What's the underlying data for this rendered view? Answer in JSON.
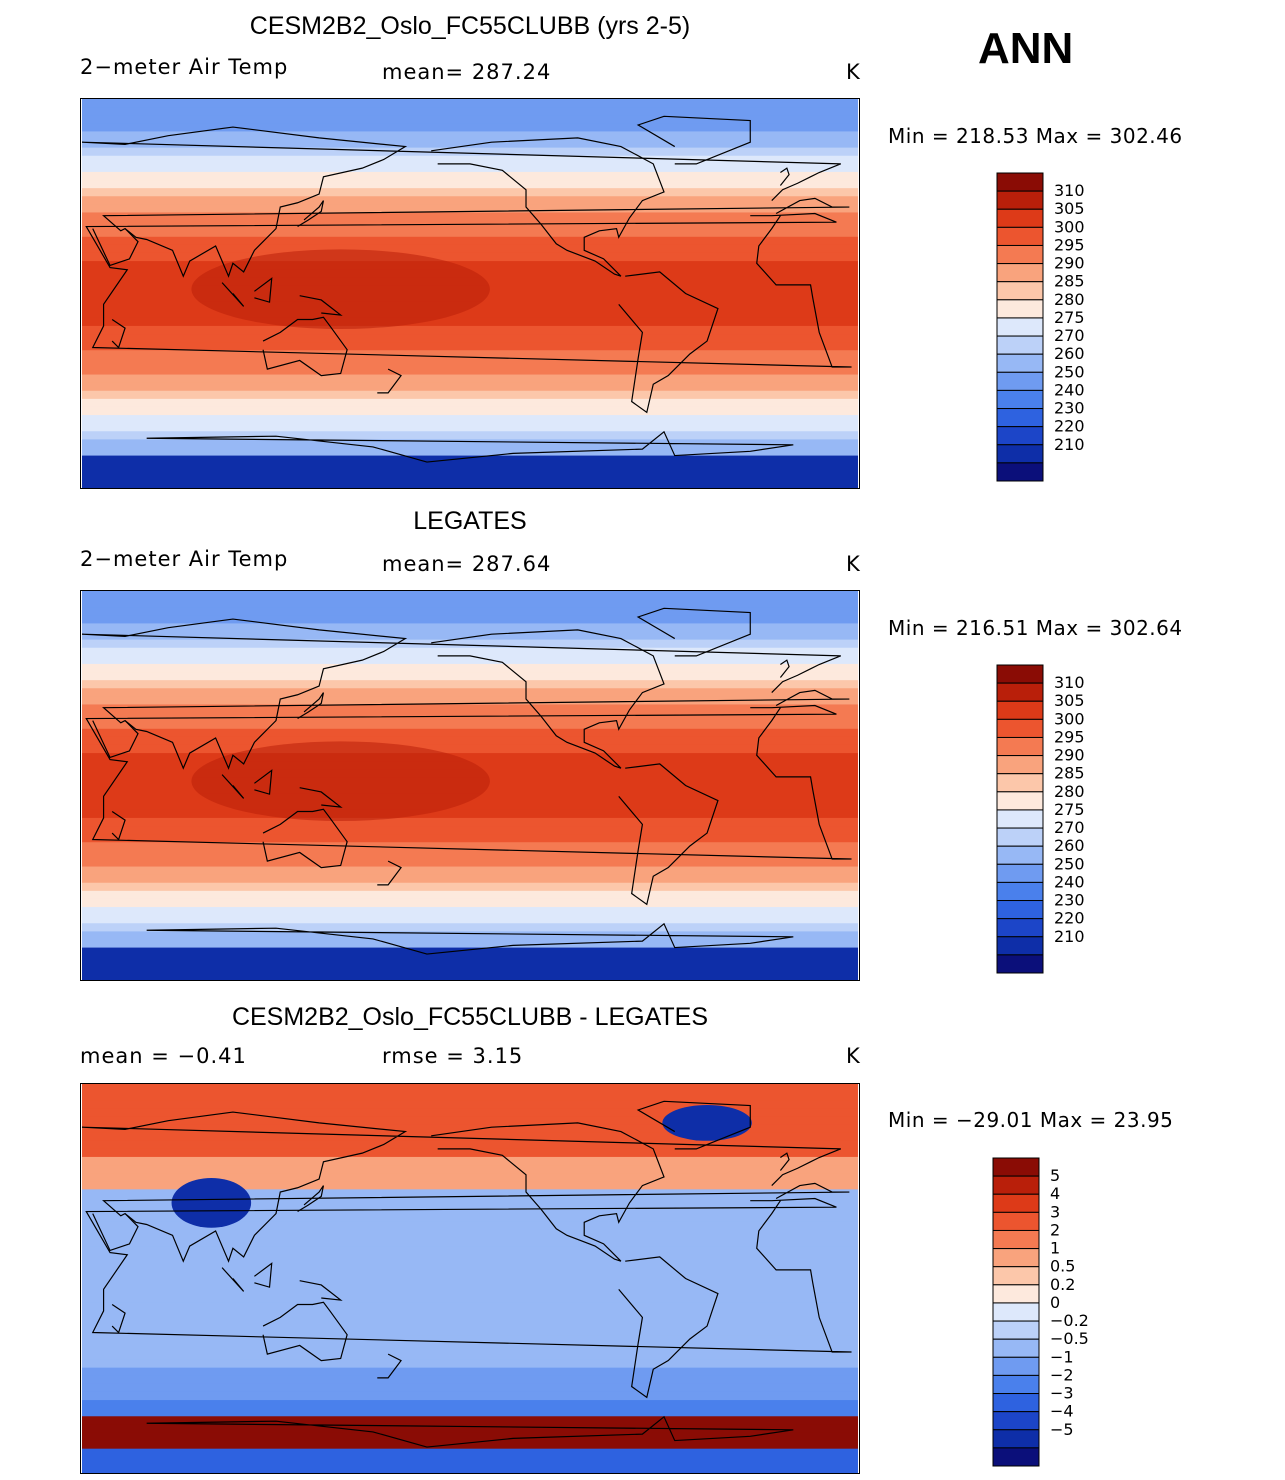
{
  "season": "ANN",
  "units": "K",
  "colors": {
    "abs_levels": [
      "#0b0f7a",
      "#0e2ea8",
      "#1c45c8",
      "#2e62e0",
      "#4a80ec",
      "#6f9bf1",
      "#97b8f5",
      "#bcd1f8",
      "#dde8fb",
      "#fde9dd",
      "#fcc7aa",
      "#f9a37d",
      "#f47a52",
      "#ec552f",
      "#dd3a18",
      "#b91f0a",
      "#8a0c05"
    ],
    "diff_levels": [
      "#0b0f7a",
      "#0e2ea8",
      "#1c45c8",
      "#2e62e0",
      "#4a80ec",
      "#6f9bf1",
      "#97b8f5",
      "#bcd1f8",
      "#dde8fb",
      "#fde9dd",
      "#fcc7aa",
      "#f9a37d",
      "#f47a52",
      "#ec552f",
      "#dd3a18",
      "#b91f0a",
      "#8a0c05"
    ]
  },
  "panels": [
    {
      "title": "CESM2B2_Oslo_FC55CLUBB (yrs 2-5)",
      "left_label": "2−meter Air Temp",
      "center_label": "mean=  287.24",
      "units": "K",
      "minmax": "Min  =  218.53  Max  =  302.46"
    },
    {
      "title": "LEGATES",
      "left_label": "2−meter Air Temp",
      "center_label": "mean=  287.64",
      "units": "K",
      "minmax": "Min  =  216.51  Max  =  302.64"
    },
    {
      "title": "CESM2B2_Oslo_FC55CLUBB - LEGATES",
      "left_label": "mean  =    −0.41",
      "center_label": "rmse  =      3.15",
      "units": "K",
      "minmax": "Min  =  −29.01  Max  =    23.95"
    }
  ],
  "chart_data": [
    {
      "type": "heatmap",
      "title": "CESM2B2_Oslo_FC55CLUBB (yrs 2-5)",
      "variable": "2-meter Air Temp",
      "units": "K",
      "mean": 287.24,
      "min": 218.53,
      "max": 302.46,
      "colorbar_ticks": [
        "310",
        "305",
        "300",
        "295",
        "290",
        "285",
        "280",
        "275",
        "270",
        "260",
        "250",
        "240",
        "230",
        "220",
        "210"
      ]
    },
    {
      "type": "heatmap",
      "title": "LEGATES",
      "variable": "2-meter Air Temp",
      "units": "K",
      "mean": 287.64,
      "min": 216.51,
      "max": 302.64,
      "colorbar_ticks": [
        "310",
        "305",
        "300",
        "295",
        "290",
        "285",
        "280",
        "275",
        "270",
        "260",
        "250",
        "240",
        "230",
        "220",
        "210"
      ]
    },
    {
      "type": "heatmap",
      "title": "CESM2B2_Oslo_FC55CLUBB - LEGATES",
      "units": "K",
      "mean": -0.41,
      "rmse": 3.15,
      "min": -29.01,
      "max": 23.95,
      "colorbar_ticks": [
        "5",
        "4",
        "3",
        "2",
        "1",
        "0.5",
        "0.2",
        "0",
        "−0.2",
        "−0.5",
        "−1",
        "−2",
        "−3",
        "−4",
        "−5"
      ]
    }
  ]
}
